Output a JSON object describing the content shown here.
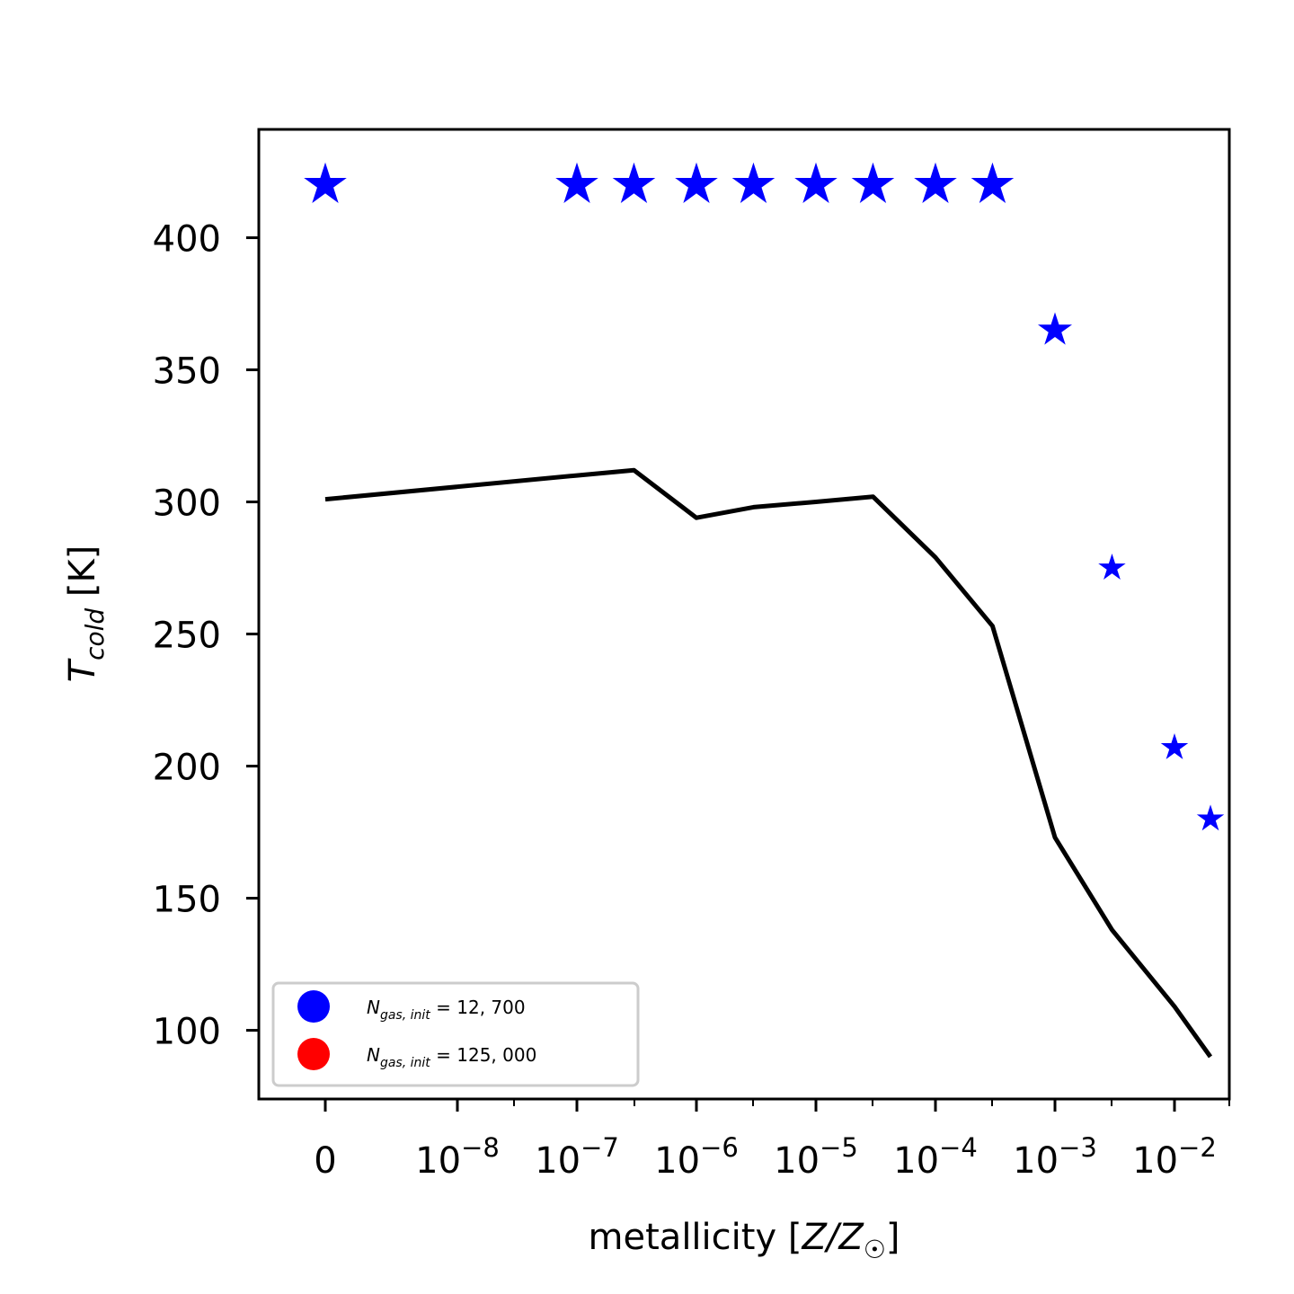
{
  "chart_data": {
    "type": "scatter",
    "xlabel": "metallicity [Z/Z☉]",
    "ylabel": "T_cold [K]",
    "x_scale": "categorical-log",
    "x_ticks": [
      {
        "value": "0",
        "base": "0",
        "exp": ""
      },
      {
        "value": "1e-8",
        "base": "10",
        "exp": "−8"
      },
      {
        "value": "1e-7",
        "base": "10",
        "exp": "−7"
      },
      {
        "value": "1e-6",
        "base": "10",
        "exp": "−6"
      },
      {
        "value": "1e-5",
        "base": "10",
        "exp": "−5"
      },
      {
        "value": "1e-4",
        "base": "10",
        "exp": "−4"
      },
      {
        "value": "1e-3",
        "base": "10",
        "exp": "−3"
      },
      {
        "value": "1e-2",
        "base": "10",
        "exp": "−2"
      }
    ],
    "y_ticks": [
      100,
      150,
      200,
      250,
      300,
      350,
      400
    ],
    "ylim": [
      74,
      441
    ],
    "grid": false,
    "legend_position": "lower-left",
    "legend": [
      {
        "label_main": "N",
        "label_sub": "gas, init",
        "label_rest": " = 12, 700",
        "color": "#0000ff"
      },
      {
        "label_main": "N",
        "label_sub": "gas, init",
        "label_rest": " = 125, 000",
        "color": "#ff0000"
      }
    ],
    "series": [
      {
        "type": "scatter",
        "marker": "star",
        "color": "#0000ff",
        "x": [
          "0",
          "1e-7",
          "3e-7",
          "1e-6",
          "3e-6",
          "1e-5",
          "3e-5",
          "1e-4",
          "3e-4",
          "1e-3",
          "3e-3",
          "1e-2",
          "2e-2"
        ],
        "y": [
          420,
          420,
          420,
          420,
          420,
          420,
          420,
          420,
          420,
          365,
          275,
          207,
          180
        ]
      },
      {
        "type": "line",
        "color": "#000000",
        "x": [
          "0",
          "1e-7",
          "3e-7",
          "1e-6",
          "3e-6",
          "1e-5",
          "3e-5",
          "1e-4",
          "3e-4",
          "1e-3",
          "3e-3",
          "1e-2",
          "2e-2"
        ],
        "y": [
          301,
          310,
          312,
          294,
          298,
          300,
          302,
          279,
          253,
          173,
          138,
          109,
          90
        ]
      }
    ]
  }
}
